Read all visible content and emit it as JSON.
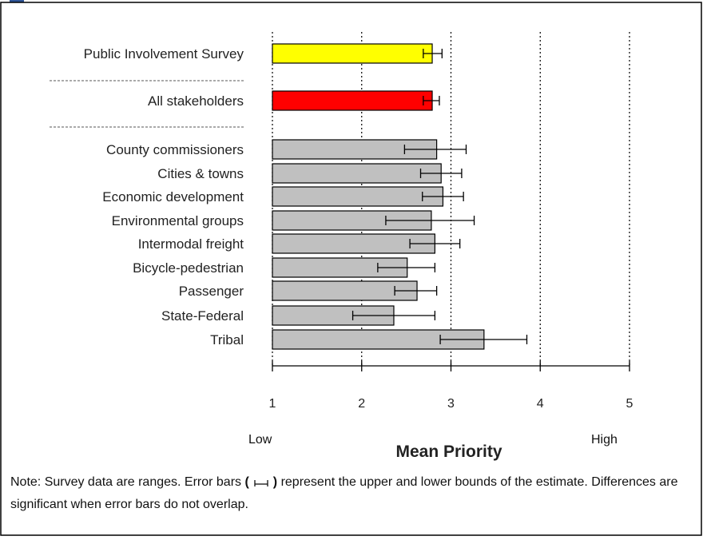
{
  "chart_data": {
    "type": "bar",
    "orientation": "horizontal",
    "xlabel": "Mean Priority",
    "xlim": [
      1,
      5
    ],
    "xticks": [
      1,
      2,
      3,
      4,
      5
    ],
    "x_end_labels": {
      "low": "Low",
      "high": "High"
    },
    "grid": "vertical dotted lines at 1, 2, 3, 4, 5",
    "categories": [
      "Public Involvement Survey",
      "All stakeholders",
      "County commissioners",
      "Cities & towns",
      "Economic development",
      "Environmental groups",
      "Intermodal freight",
      "Bicycle-pedestrian",
      "Passenger",
      "State-Federal",
      "Tribal"
    ],
    "values": [
      2.79,
      2.79,
      2.84,
      2.89,
      2.91,
      2.78,
      2.82,
      2.51,
      2.62,
      2.36,
      3.37
    ],
    "error_low": [
      2.69,
      2.69,
      2.48,
      2.66,
      2.68,
      2.27,
      2.54,
      2.18,
      2.37,
      1.9,
      2.88
    ],
    "error_high": [
      2.9,
      2.87,
      3.17,
      3.12,
      3.14,
      3.26,
      3.1,
      2.82,
      2.84,
      2.82,
      3.85
    ],
    "colors": [
      "#ffff00",
      "#ff0000",
      "#c0c0c0",
      "#c0c0c0",
      "#c0c0c0",
      "#c0c0c0",
      "#c0c0c0",
      "#c0c0c0",
      "#c0c0c0",
      "#c0c0c0",
      "#c0c0c0"
    ]
  },
  "note": {
    "prefix": "Note:  Survey data are ranges.  Error bars ",
    "paren_open": "(",
    "paren_close": ")",
    "suffix": " represent the upper and lower bounds of the estimate.  Differences are significant when error bars do not overlap."
  }
}
